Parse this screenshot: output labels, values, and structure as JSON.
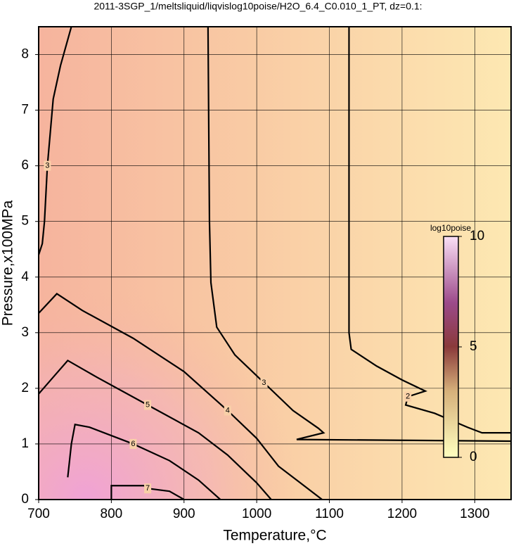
{
  "chart_data": {
    "type": "contour",
    "title": "2011-3SGP_1/meltsliquid/liqvislog10poise/H2O_6.4_C0.010_1_PT, dz=0.1:",
    "x_label": "Temperature,°C",
    "y_label": "Pressure,x100MPa",
    "xlim": [
      700,
      1350
    ],
    "ylim": [
      0,
      8.5
    ],
    "xticks": [
      700,
      800,
      900,
      1000,
      1100,
      1200,
      1300
    ],
    "yticks": [
      0,
      1,
      2,
      3,
      4,
      5,
      6,
      7,
      8
    ],
    "grid": true,
    "line_color": "#000000",
    "contours": [
      {
        "level": 2,
        "x": [
          1127,
          1127,
          1130,
          1165,
          1200,
          1232,
          1208,
          1205,
          1245,
          1290,
          1310,
          1350
        ],
        "y": [
          8.5,
          3.0,
          2.7,
          2.4,
          2.15,
          1.95,
          1.85,
          1.7,
          1.55,
          1.3,
          1.2,
          1.2
        ]
      },
      {
        "level": 3,
        "x": [
          933,
          935,
          937,
          945,
          970,
          1010,
          1050,
          1085,
          1092,
          1055,
          1350
        ],
        "y": [
          8.5,
          5.0,
          3.9,
          3.1,
          2.6,
          2.1,
          1.6,
          1.28,
          1.2,
          1.08,
          1.05
        ]
      },
      {
        "level": 3,
        "x": [
          745,
          730,
          720,
          712,
          708,
          705,
          700
        ],
        "y": [
          8.5,
          7.8,
          7.2,
          6.0,
          5.0,
          4.6,
          4.4
        ]
      },
      {
        "level": 4,
        "x": [
          700,
          725,
          760,
          830,
          900,
          960,
          1000,
          1030,
          1060,
          1090
        ],
        "y": [
          3.35,
          3.7,
          3.4,
          2.9,
          2.3,
          1.6,
          1.1,
          0.6,
          0.3,
          0.0
        ]
      },
      {
        "level": 5,
        "x": [
          700,
          720,
          740,
          780,
          850,
          920,
          960,
          1000,
          1020
        ],
        "y": [
          1.9,
          2.2,
          2.5,
          2.2,
          1.7,
          1.2,
          0.8,
          0.3,
          0.0
        ]
      },
      {
        "level": 6,
        "x": [
          740,
          745,
          750,
          770,
          830,
          880,
          920,
          950
        ],
        "y": [
          0.4,
          1.0,
          1.35,
          1.3,
          1.0,
          0.7,
          0.35,
          0.0
        ]
      },
      {
        "level": 7,
        "x": [
          800,
          800,
          845,
          850,
          880,
          900
        ],
        "y": [
          0.0,
          0.25,
          0.25,
          0.2,
          0.15,
          0.0
        ]
      }
    ],
    "colorbar": {
      "label": "log10poise",
      "lim": [
        0,
        10
      ],
      "ticks": [
        0,
        5,
        10
      ]
    }
  }
}
